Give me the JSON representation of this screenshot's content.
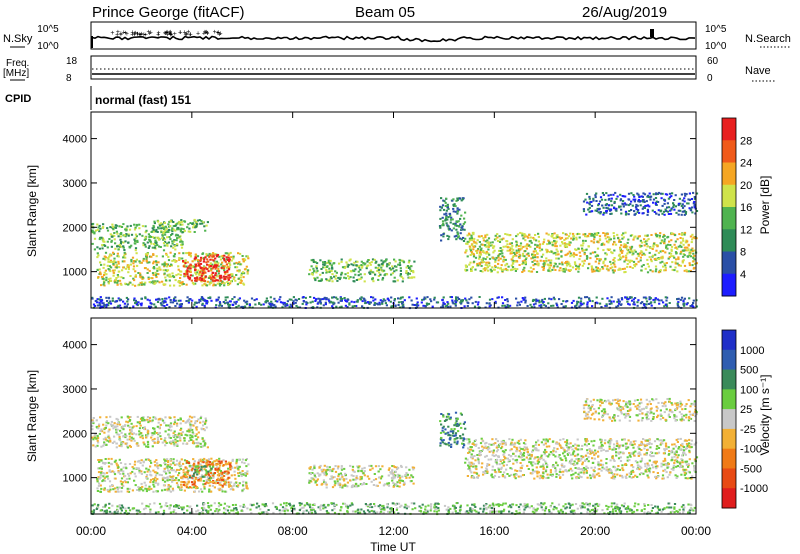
{
  "header": {
    "station": "Prince George (fitACF)",
    "beam": "Beam 05",
    "date": "26/Aug/2019"
  },
  "top_panel": {
    "left_label": "N.Sky",
    "right_label": "N.Search",
    "left_ticks": [
      "10^5",
      "10^0"
    ],
    "right_ticks": [
      "10^5",
      "10^0"
    ]
  },
  "freq_panel": {
    "left_label_1": "Freq.",
    "left_label_2": "[MHz]",
    "right_label": "Nave",
    "left_ticks": [
      "18",
      "8"
    ],
    "right_ticks": [
      "60",
      "0"
    ]
  },
  "cpid": {
    "label": "CPID",
    "text": "normal (fast) 151"
  },
  "x_axis": {
    "ticks": [
      "00:00",
      "04:00",
      "08:00",
      "12:00",
      "16:00",
      "20:00",
      "00:00"
    ],
    "label": "Time UT"
  },
  "colors": {
    "power": [
      "#1d1dff",
      "#2a4fa6",
      "#2e8b57",
      "#4fb34f",
      "#cfe34a",
      "#f5a623",
      "#f05a1a",
      "#e81f1f"
    ],
    "velocity": [
      "#1f2fc8",
      "#2f5db0",
      "#3a8a5a",
      "#6acd3f",
      "#c8c8c8",
      "#f2b035",
      "#f07a16",
      "#e84a14",
      "#e01d1d"
    ],
    "ground": "#c0c0c0"
  },
  "chart_data": [
    {
      "type": "heatmap",
      "title": "",
      "ylabel": "Slant Range [km]",
      "xlabel": "",
      "ylim": [
        180,
        4600
      ],
      "xlim": [
        0,
        24
      ],
      "yticks": [
        "1000",
        "2000",
        "3000",
        "4000"
      ],
      "colorbar": {
        "label": "Power [dB]",
        "ticks": [
          "4",
          "8",
          "12",
          "16",
          "20",
          "24",
          "28"
        ]
      },
      "regions": [
        {
          "t0": 0.0,
          "t1": 3.6,
          "r0": 1500,
          "r1": 2100,
          "level": 3
        },
        {
          "t0": 0.2,
          "t1": 6.2,
          "r0": 700,
          "r1": 1450,
          "level": 4
        },
        {
          "t0": 3.6,
          "t1": 5.5,
          "r0": 800,
          "r1": 1400,
          "level": 7
        },
        {
          "t0": 2.4,
          "t1": 4.6,
          "r0": 1900,
          "r1": 2200,
          "level": 3
        },
        {
          "t0": 8.6,
          "t1": 12.8,
          "r0": 800,
          "r1": 1300,
          "level": 3
        },
        {
          "t0": 13.8,
          "t1": 14.8,
          "r0": 1700,
          "r1": 2700,
          "level": 2
        },
        {
          "t0": 14.8,
          "t1": 24.0,
          "r0": 1000,
          "r1": 1900,
          "level": 4
        },
        {
          "t0": 19.5,
          "t1": 24.0,
          "r0": 2300,
          "r1": 2800,
          "level": 1
        },
        {
          "t0": 0.0,
          "t1": 24.0,
          "r0": 200,
          "r1": 450,
          "level": 1
        }
      ]
    },
    {
      "type": "heatmap",
      "title": "",
      "ylabel": "Slant Range [km]",
      "xlabel": "Time UT",
      "ylim": [
        180,
        4600
      ],
      "xlim": [
        0,
        24
      ],
      "yticks": [
        "1000",
        "2000",
        "3000",
        "4000"
      ],
      "colorbar": {
        "label": "Velocity [m s⁻¹]",
        "ticks": [
          "1000",
          "500",
          "100",
          "25",
          "-25",
          "-100",
          "-500",
          "-1000"
        ]
      },
      "regions": [
        {
          "t0": 0.0,
          "t1": 4.6,
          "r0": 1700,
          "r1": 2400,
          "level": 4
        },
        {
          "t0": 0.2,
          "t1": 6.2,
          "r0": 700,
          "r1": 1450,
          "level": 4
        },
        {
          "t0": 3.6,
          "t1": 5.5,
          "r0": 800,
          "r1": 1400,
          "level": 6
        },
        {
          "t0": 3.8,
          "t1": 4.8,
          "r0": 1000,
          "r1": 1300,
          "level": 3
        },
        {
          "t0": 8.6,
          "t1": 12.8,
          "r0": 800,
          "r1": 1300,
          "level": 4
        },
        {
          "t0": 13.8,
          "t1": 14.8,
          "r0": 1700,
          "r1": 2500,
          "level": 2
        },
        {
          "t0": 14.8,
          "t1": 24.0,
          "r0": 1000,
          "r1": 1900,
          "level": 4
        },
        {
          "t0": 19.5,
          "t1": 24.0,
          "r0": 2300,
          "r1": 2800,
          "level": 4
        },
        {
          "t0": 0.0,
          "t1": 24.0,
          "r0": 200,
          "r1": 450,
          "level": 3
        }
      ]
    }
  ]
}
